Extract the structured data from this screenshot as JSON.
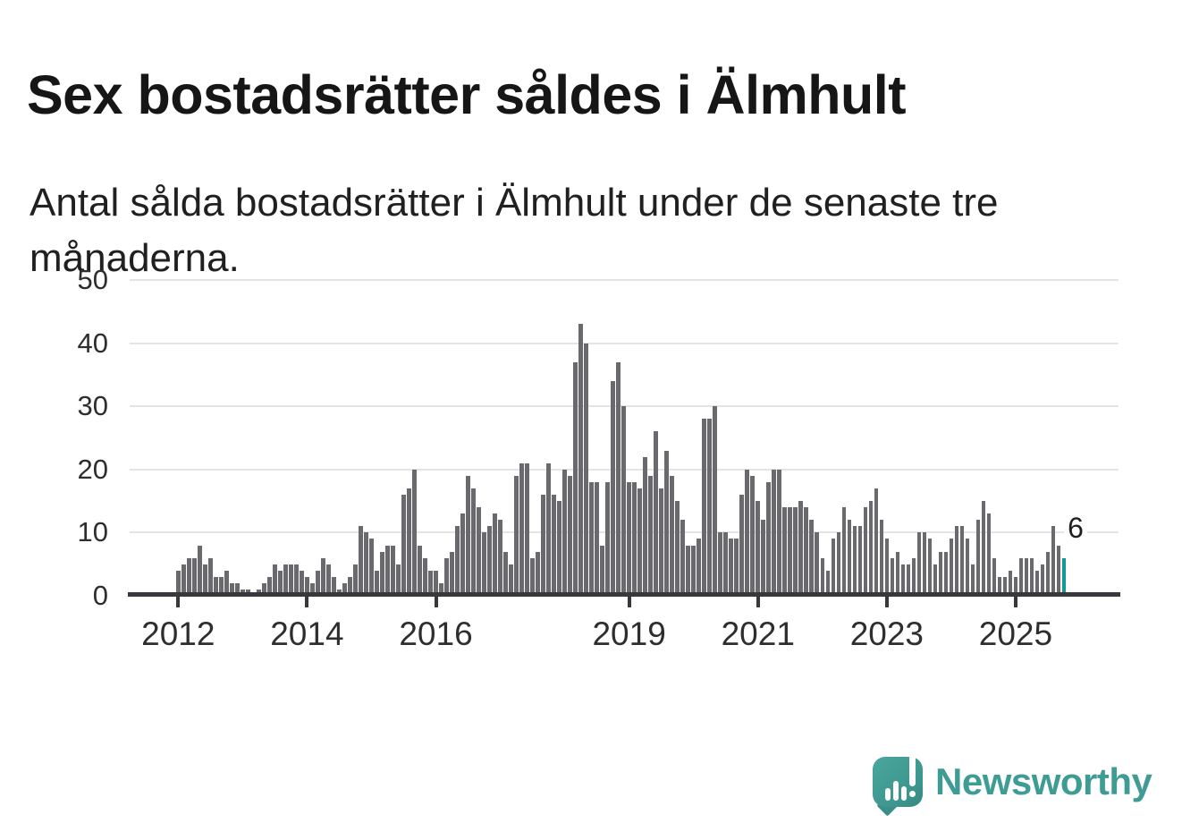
{
  "header": {
    "title": "Sex bostadsrätter såldes i Älmhult",
    "subtitle": "Antal sålda bostadsrätter i Älmhult under de senaste tre månaderna."
  },
  "chart_data": {
    "type": "bar",
    "title": "Sex bostadsrätter såldes i Älmhult",
    "subtitle": "Antal sålda bostadsrätter i Älmhult under de senaste tre månaderna.",
    "x_start": "2012-01",
    "x_interval": "month",
    "values": [
      4,
      5,
      6,
      6,
      8,
      5,
      6,
      3,
      3,
      4,
      2,
      2,
      1,
      1,
      0,
      1,
      2,
      3,
      5,
      4,
      5,
      5,
      5,
      4,
      3,
      2,
      4,
      6,
      5,
      3,
      1,
      2,
      3,
      5,
      11,
      10,
      9,
      4,
      7,
      8,
      8,
      5,
      16,
      17,
      20,
      8,
      6,
      4,
      4,
      2,
      6,
      7,
      11,
      13,
      19,
      17,
      14,
      10,
      11,
      13,
      12,
      7,
      5,
      19,
      21,
      21,
      6,
      7,
      16,
      21,
      16,
      15,
      20,
      19,
      37,
      43,
      40,
      18,
      18,
      8,
      18,
      34,
      37,
      30,
      18,
      18,
      17,
      22,
      19,
      26,
      17,
      23,
      19,
      15,
      12,
      8,
      8,
      9,
      28,
      28,
      30,
      10,
      10,
      9,
      9,
      16,
      20,
      19,
      15,
      12,
      18,
      20,
      20,
      14,
      14,
      14,
      15,
      14,
      12,
      10,
      6,
      4,
      9,
      10,
      14,
      12,
      11,
      11,
      14,
      15,
      17,
      12,
      9,
      6,
      7,
      5,
      5,
      6,
      10,
      10,
      9,
      5,
      7,
      7,
      9,
      11,
      11,
      9,
      5,
      12,
      15,
      13,
      6,
      3,
      3,
      4,
      3,
      6,
      6,
      6,
      4,
      5,
      7,
      11,
      8,
      6
    ],
    "ylim": [
      0,
      50
    ],
    "yticks": [
      0,
      10,
      20,
      30,
      40,
      50
    ],
    "xticks": [
      2012,
      2014,
      2016,
      2019,
      2021,
      2023,
      2025
    ],
    "bar_color": "#6a6a6e",
    "highlight": {
      "position": "last",
      "value": 6,
      "label": "6",
      "color": "#149a90"
    },
    "grid": true,
    "legend": "none",
    "xlabel": "",
    "ylabel": ""
  },
  "footer": {
    "logo_text": "Newsworthy",
    "logo_icon": "speech-bubble-bar-chart-icon",
    "brand_color": "#3f9c94"
  }
}
